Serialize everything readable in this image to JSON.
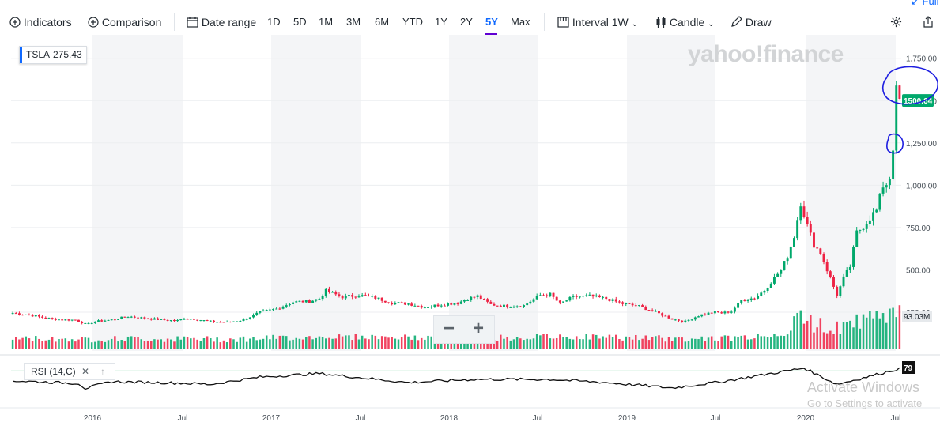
{
  "toolbar": {
    "indicators": "Indicators",
    "comparison": "Comparison",
    "date_range": "Date range",
    "ranges": [
      "1D",
      "5D",
      "1M",
      "3M",
      "6M",
      "YTD",
      "1Y",
      "2Y",
      "5Y",
      "Max"
    ],
    "selected_range": "5Y",
    "interval_label": "Interval",
    "interval_value": "1W",
    "chart_type": "Candle",
    "draw": "Draw",
    "full": "Full"
  },
  "legend": {
    "symbol": "TSLA",
    "price": "275.43"
  },
  "indicator": {
    "label": "RSI (14,C)"
  },
  "watermark": "yahoo!finance",
  "windows_notice": {
    "line1": "Activate Windows",
    "line2": "Go to Settings to activate"
  },
  "colors": {
    "up": "#00a86b",
    "down": "#ee2244",
    "accent": "#0f69ff",
    "annotation": "#1d1de0"
  },
  "chart_data": {
    "type": "candlestick",
    "symbol": "TSLA",
    "interval": "1W",
    "range": "5Y",
    "x_tick_labels": [
      "2016",
      "Jul",
      "2017",
      "Jul",
      "2018",
      "Jul",
      "2019",
      "Jul",
      "2020",
      "Jul"
    ],
    "y_tick_labels": [
      "1,750.00",
      "1,500.00",
      "1,250.00",
      "1,000.00",
      "750.00",
      "500.00",
      "250.00"
    ],
    "ylim": [
      180,
      1800
    ],
    "current_price_label": "1500.64",
    "volume_label": "93.03M",
    "rsi_value_label": "79",
    "close_anchors": [
      [
        0,
        245
      ],
      [
        5,
        235
      ],
      [
        10,
        215
      ],
      [
        15,
        205
      ],
      [
        19,
        205
      ],
      [
        21,
        190
      ],
      [
        22,
        155
      ],
      [
        25,
        195
      ],
      [
        30,
        205
      ],
      [
        35,
        225
      ],
      [
        40,
        215
      ],
      [
        45,
        205
      ],
      [
        50,
        200
      ],
      [
        52,
        215
      ],
      [
        55,
        210
      ],
      [
        60,
        195
      ],
      [
        65,
        190
      ],
      [
        70,
        205
      ],
      [
        75,
        250
      ],
      [
        80,
        270
      ],
      [
        85,
        310
      ],
      [
        90,
        315
      ],
      [
        93,
        330
      ],
      [
        95,
        375
      ],
      [
        100,
        340
      ],
      [
        105,
        350
      ],
      [
        110,
        335
      ],
      [
        115,
        305
      ],
      [
        120,
        300
      ],
      [
        125,
        280
      ],
      [
        130,
        295
      ],
      [
        135,
        305
      ],
      [
        138,
        330
      ],
      [
        141,
        345
      ],
      [
        145,
        295
      ],
      [
        150,
        285
      ],
      [
        155,
        290
      ],
      [
        160,
        350
      ],
      [
        163,
        355
      ],
      [
        166,
        300
      ],
      [
        170,
        340
      ],
      [
        175,
        345
      ],
      [
        180,
        330
      ],
      [
        185,
        300
      ],
      [
        190,
        285
      ],
      [
        195,
        250
      ],
      [
        200,
        210
      ],
      [
        204,
        195
      ],
      [
        208,
        230
      ],
      [
        210,
        240
      ],
      [
        213,
        250
      ],
      [
        215,
        245
      ],
      [
        218,
        255
      ],
      [
        221,
        320
      ],
      [
        225,
        335
      ],
      [
        228,
        380
      ],
      [
        230,
        430
      ],
      [
        233,
        500
      ],
      [
        235,
        580
      ],
      [
        237,
        700
      ],
      [
        239,
        900
      ],
      [
        241,
        760
      ],
      [
        243,
        650
      ],
      [
        245,
        600
      ],
      [
        248,
        450
      ],
      [
        250,
        350
      ],
      [
        252,
        450
      ],
      [
        254,
        520
      ],
      [
        256,
        720
      ],
      [
        258,
        760
      ],
      [
        260,
        810
      ],
      [
        262,
        850
      ],
      [
        264,
        1000
      ],
      [
        265,
        1010
      ],
      [
        266,
        1050
      ],
      [
        267,
        1230
      ],
      [
        268,
        1550
      ],
      [
        269,
        1500
      ]
    ],
    "rsi_anchors": [
      [
        0,
        52
      ],
      [
        20,
        46
      ],
      [
        22,
        35
      ],
      [
        30,
        50
      ],
      [
        50,
        47
      ],
      [
        60,
        44
      ],
      [
        75,
        60
      ],
      [
        93,
        68
      ],
      [
        120,
        48
      ],
      [
        140,
        55
      ],
      [
        163,
        55
      ],
      [
        180,
        48
      ],
      [
        200,
        36
      ],
      [
        215,
        50
      ],
      [
        240,
        80
      ],
      [
        250,
        44
      ],
      [
        260,
        62
      ],
      [
        269,
        79
      ]
    ]
  }
}
